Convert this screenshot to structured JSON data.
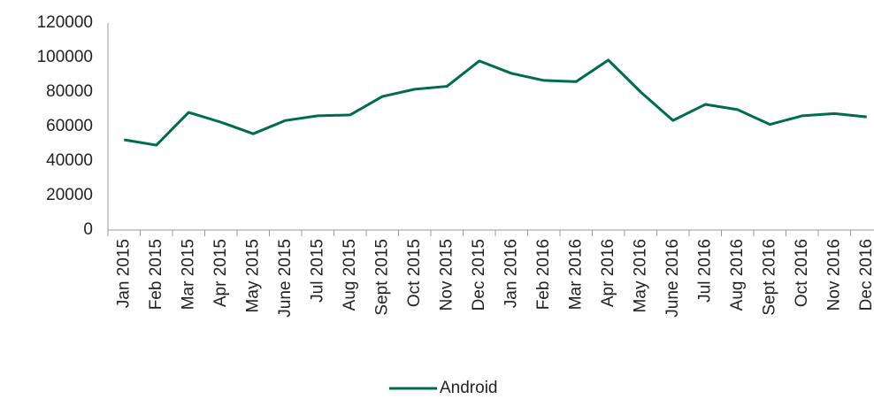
{
  "chart_data": {
    "type": "line",
    "categories": [
      "Jan 2015",
      "Feb 2015",
      "Mar 2015",
      "Apr 2015",
      "May 2015",
      "June 2015",
      "Jul 2015",
      "Aug 2015",
      "Sept 2015",
      "Oct 2015",
      "Nov 2015",
      "Dec 2015",
      "Jan 2016",
      "Feb 2016",
      "Mar 2016",
      "Apr 2016",
      "May 2016",
      "June 2016",
      "Jul 2016",
      "Aug 2016",
      "Sept 2016",
      "Oct 2016",
      "Nov 2016",
      "Dec 2016"
    ],
    "series": [
      {
        "name": "Android",
        "color": "#006b4f",
        "values": [
          52300,
          49200,
          68200,
          62500,
          55800,
          63500,
          66200,
          66700,
          77400,
          81600,
          83300,
          98000,
          90800,
          86700,
          86000,
          98500,
          80000,
          63500,
          72800,
          69800,
          61200,
          66200,
          67500,
          65600
        ]
      }
    ],
    "ylim": [
      0,
      120000
    ],
    "yticks": [
      0,
      20000,
      40000,
      60000,
      80000,
      100000,
      120000
    ],
    "grid": false,
    "legend": "bottom"
  }
}
